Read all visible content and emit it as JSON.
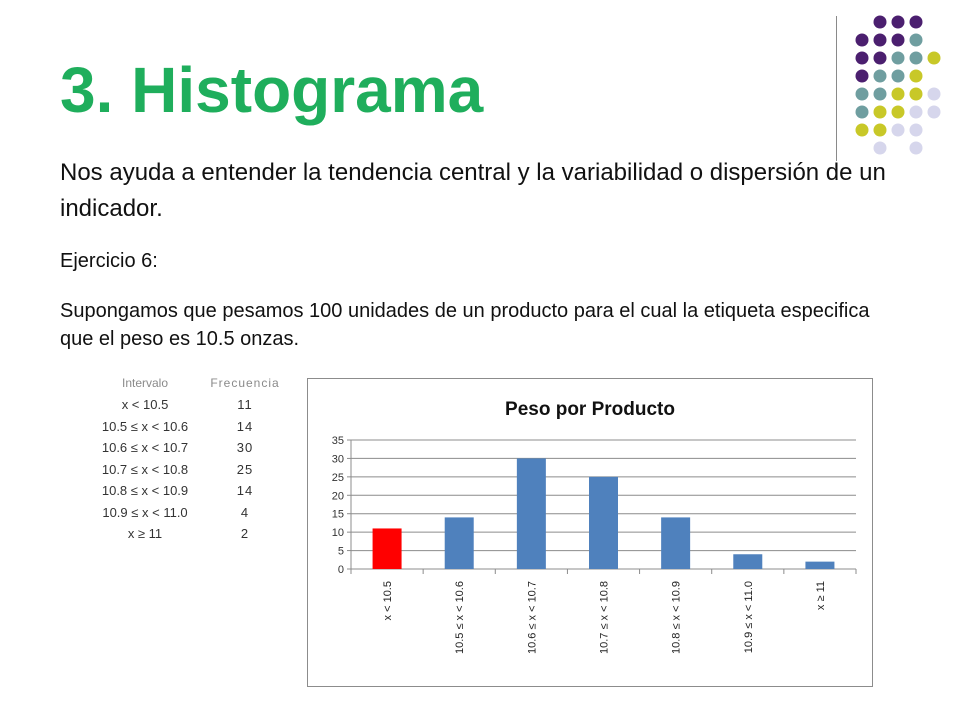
{
  "slide": {
    "title": "3. Histograma",
    "paragraph1": "Nos ayuda a entender la tendencia central y la variabilidad o dispersión de un indicador.",
    "paragraph2": "Ejercicio 6:",
    "paragraph3": "Supongamos que pesamos 100 unidades de un producto para el cual la etiqueta especifica que el peso es 10.5 onzas."
  },
  "table": {
    "headers": [
      "Intervalo",
      "Frecuencia"
    ],
    "rows": [
      [
        "x < 10.5",
        "11"
      ],
      [
        "10.5 ≤ x < 10.6",
        "14"
      ],
      [
        "10.6 ≤ x < 10.7",
        "30"
      ],
      [
        "10.7 ≤ x < 10.8",
        "25"
      ],
      [
        "10.8 ≤ x < 10.9",
        "14"
      ],
      [
        "10.9 ≤ x < 11.0",
        "4"
      ],
      [
        "x ≥ 11",
        "2"
      ]
    ]
  },
  "colors": {
    "title": "#1fae5c",
    "bar": "#4f81bd",
    "highlight_bar": "#ff0000",
    "dot_purple": "#4b1f6f",
    "dot_teal": "#6f9ea0",
    "dot_yellow": "#c8c828",
    "dot_lavender": "#d6d6ec"
  },
  "chart_data": {
    "type": "bar",
    "title": "Peso por Producto",
    "categories": [
      "x < 10.5",
      "10.5 ≤ x < 10.6",
      "10.6 ≤ x < 10.7",
      "10.7 ≤ x < 10.8",
      "10.8 ≤ x < 10.9",
      "10.9 ≤ x < 11.0",
      "x ≥ 11"
    ],
    "values": [
      11,
      14,
      30,
      25,
      14,
      4,
      2
    ],
    "highlight_index": 0,
    "xlabel": "",
    "ylabel": "",
    "ylim": [
      0,
      35
    ],
    "yticks": [
      0,
      5,
      10,
      15,
      20,
      25,
      30,
      35
    ],
    "grid": true,
    "legend": "none"
  }
}
